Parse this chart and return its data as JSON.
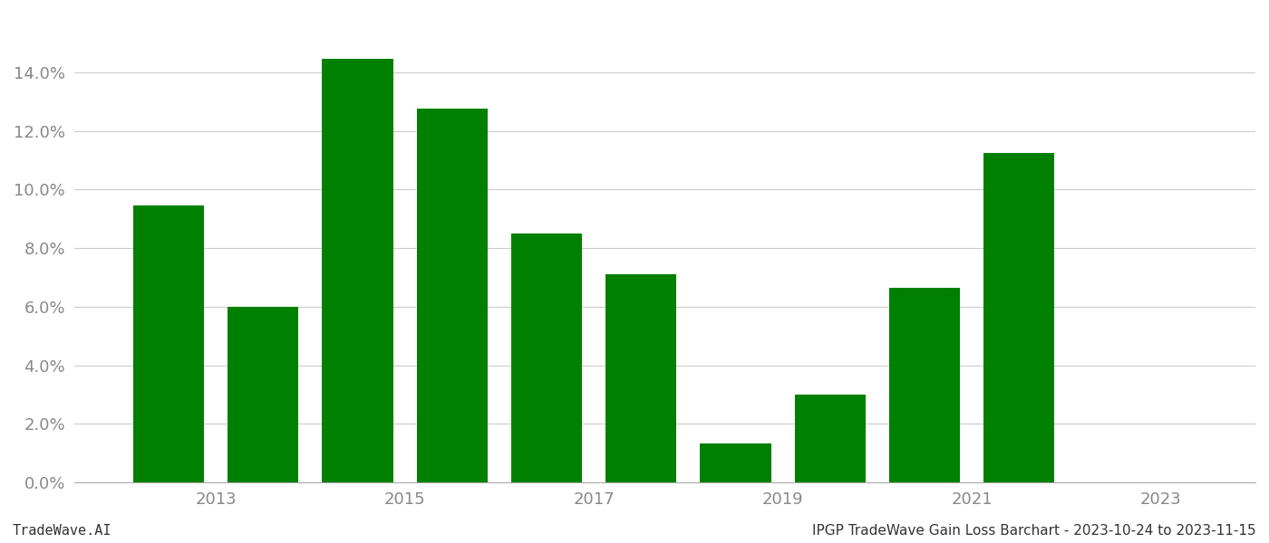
{
  "bar_positions": [
    2012.5,
    2013.5,
    2014.5,
    2015.5,
    2016.5,
    2017.5,
    2018.5,
    2019.5,
    2020.5,
    2021.5
  ],
  "values": [
    0.0945,
    0.06,
    0.1445,
    0.1275,
    0.085,
    0.071,
    0.0135,
    0.03,
    0.0665,
    0.1125
  ],
  "bar_color": "#008000",
  "background_color": "#ffffff",
  "grid_color": "#cccccc",
  "footer_left": "TradeWave.AI",
  "footer_right": "IPGP TradeWave Gain Loss Barchart - 2023-10-24 to 2023-11-15",
  "ylim": [
    0,
    0.16
  ],
  "yticks": [
    0.0,
    0.02,
    0.04,
    0.06,
    0.08,
    0.1,
    0.12,
    0.14
  ],
  "xtick_positions": [
    2013,
    2015,
    2017,
    2019,
    2021,
    2023
  ],
  "xtick_labels": [
    "2013",
    "2015",
    "2017",
    "2019",
    "2021",
    "2023"
  ],
  "xlim": [
    2011.5,
    2024.0
  ],
  "bar_width": 0.75,
  "figsize": [
    14.0,
    6.0
  ],
  "dpi": 100
}
